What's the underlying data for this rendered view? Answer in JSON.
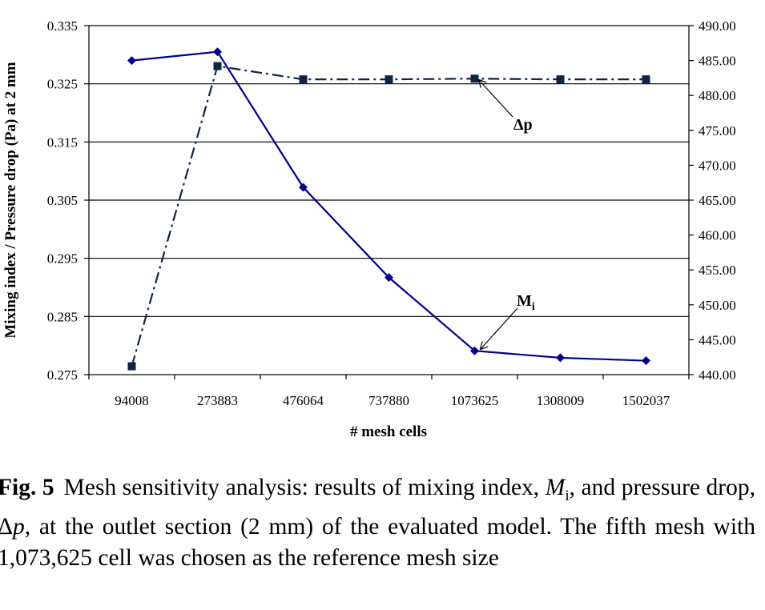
{
  "chart_data": {
    "type": "line",
    "categories": [
      "94008",
      "273883",
      "476064",
      "737880",
      "1073625",
      "1308009",
      "1502037"
    ],
    "xlabel": "# mesh cells",
    "ylabel": "Mixing index / Pressure drop (Pa) at 2 mm",
    "ylim_left": [
      0.275,
      0.335
    ],
    "ylim_right": [
      440.0,
      490.0
    ],
    "left_ticks": [
      "0.335",
      "0.325",
      "0.315",
      "0.305",
      "0.295",
      "0.285",
      "0.275"
    ],
    "right_ticks": [
      "490.00",
      "485.00",
      "480.00",
      "475.00",
      "470.00",
      "465.00",
      "460.00",
      "455.00",
      "450.00",
      "445.00",
      "440.00"
    ],
    "grid": "horizontal",
    "series": [
      {
        "name": "Mi",
        "axis": "left",
        "marker": "diamond",
        "line": "solid",
        "color": "#00008B",
        "values": [
          0.329,
          0.3305,
          0.3072,
          0.2917,
          0.2791,
          0.2779,
          0.2774
        ]
      },
      {
        "name": "Δp",
        "axis": "right",
        "marker": "square",
        "line": "dash-dot",
        "color": "#0f2444",
        "values": [
          441.2,
          484.2,
          482.3,
          482.3,
          482.4,
          482.3,
          482.3
        ]
      }
    ],
    "annotations": [
      {
        "label_main": "Δ",
        "label_sub": "p",
        "series": "Δp",
        "point_index": 4
      },
      {
        "label_main": "M",
        "label_sub": "i",
        "series": "Mi",
        "point_index": 4
      }
    ]
  },
  "caption": {
    "fig_label": "Fig. 5",
    "text_1": "Mesh sensitivity analysis: results of mixing index, ",
    "mi_symbol": "M",
    "mi_sub": "i",
    "text_2": ", and pressure drop, Δ",
    "p_symbol": "p",
    "text_3": ", at the outlet section (2 mm) of the evaluated model. The fifth mesh with 1,073,625 cell was chosen as the reference mesh size"
  }
}
